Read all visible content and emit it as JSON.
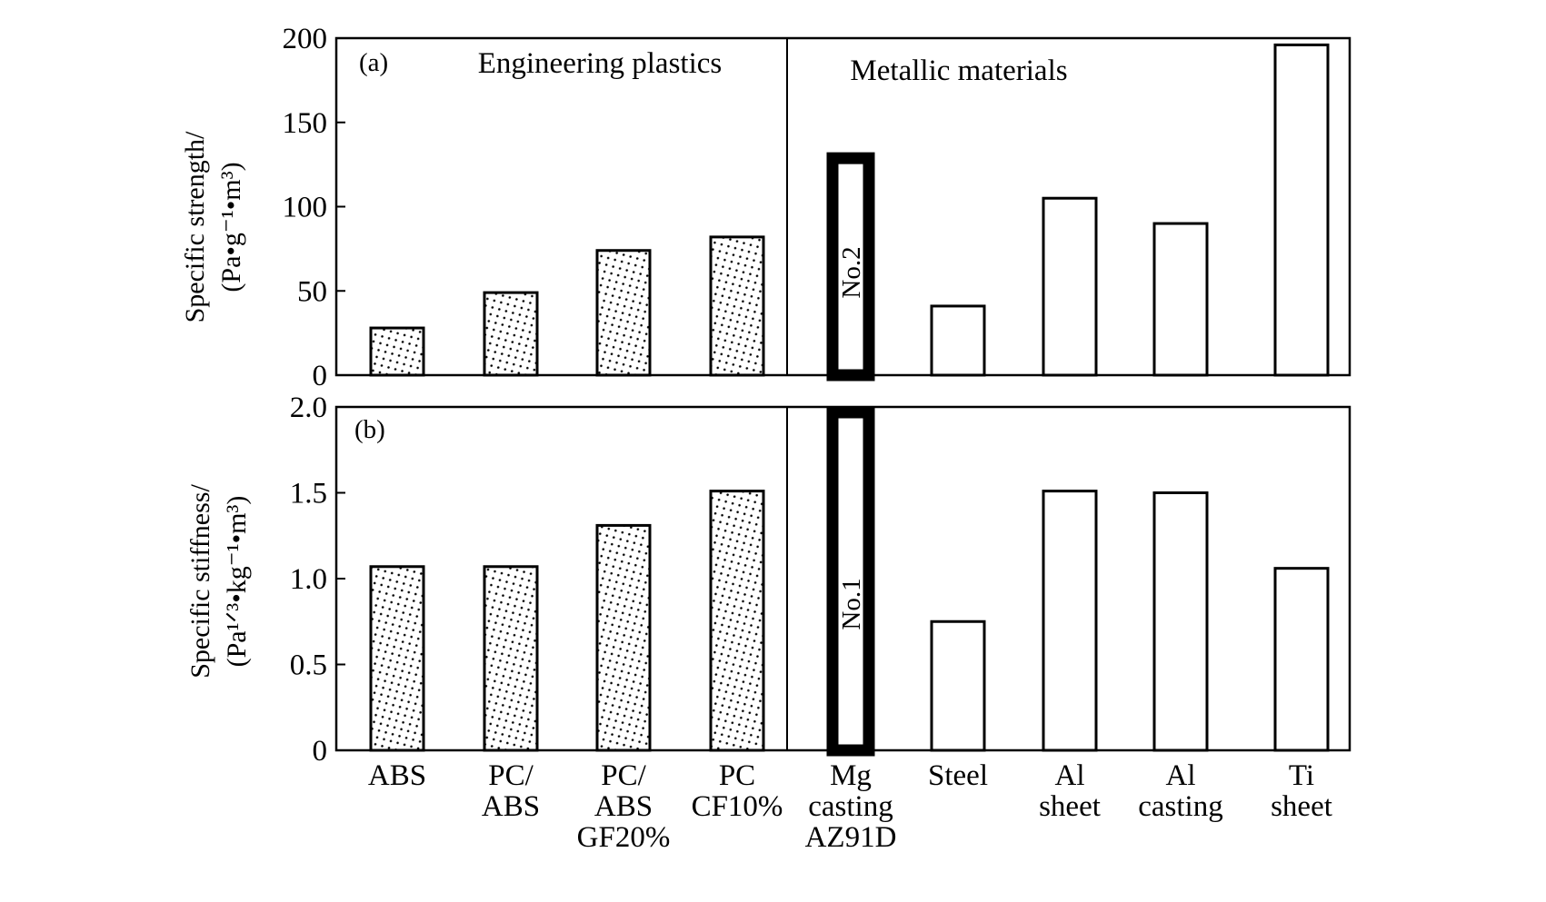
{
  "chart_data": [
    {
      "type": "bar",
      "panel_label": "(a)",
      "ylabel_line1": "Specific strength/",
      "ylabel_line2": "(Pa•g⁻¹•m³)",
      "ylim": [
        0,
        200
      ],
      "yticks": [
        "0",
        "50",
        "100",
        "150",
        "200"
      ],
      "categories": [
        "ABS",
        "PC/ABS",
        "PC/ABS GF20%",
        "PC CF10%",
        "Mg casting AZ91D",
        "Steel",
        "Al sheet",
        "Al casting",
        "Ti sheet"
      ],
      "values": [
        28,
        49,
        74,
        82,
        132,
        41,
        105,
        90,
        196
      ],
      "groups": [
        "Engineering plastics",
        "Metallic materials"
      ],
      "group_sizes": [
        4,
        5
      ],
      "bar_styles": [
        "dotted",
        "dotted",
        "dotted",
        "dotted",
        "thick",
        "plain",
        "plain",
        "plain",
        "plain"
      ],
      "bar_label": "No.2",
      "bar_label_index": 4,
      "grid": false
    },
    {
      "type": "bar",
      "panel_label": "(b)",
      "ylabel_line1": "Specific stiffness/",
      "ylabel_line2": "(Pa¹ᐟ³•kg⁻¹•m³)",
      "ylim": [
        0,
        2.0
      ],
      "yticks": [
        "0",
        "0.5",
        "1.0",
        "1.5",
        "2.0"
      ],
      "categories": [
        "ABS",
        "PC/ABS",
        "PC/ABS GF20%",
        "PC CF10%",
        "Mg casting AZ91D",
        "Steel",
        "Al sheet",
        "Al casting",
        "Ti sheet"
      ],
      "values": [
        1.07,
        1.07,
        1.31,
        1.51,
        2.0,
        0.75,
        1.51,
        1.5,
        1.06
      ],
      "bar_styles": [
        "dotted",
        "dotted",
        "dotted",
        "dotted",
        "thick",
        "plain",
        "plain",
        "plain",
        "plain"
      ],
      "bar_label": "No.1",
      "bar_label_index": 4,
      "grid": false
    }
  ],
  "x_tick_labels": [
    [
      "ABS"
    ],
    [
      "PC/",
      "ABS"
    ],
    [
      "PC/",
      "ABS",
      "GF20%"
    ],
    [
      "PC",
      "CF10%"
    ],
    [
      "Mg",
      "casting",
      "AZ91D"
    ],
    [
      "Steel"
    ],
    [
      "Al",
      "sheet"
    ],
    [
      "Al",
      "casting"
    ],
    [
      "Ti",
      "sheet"
    ]
  ]
}
